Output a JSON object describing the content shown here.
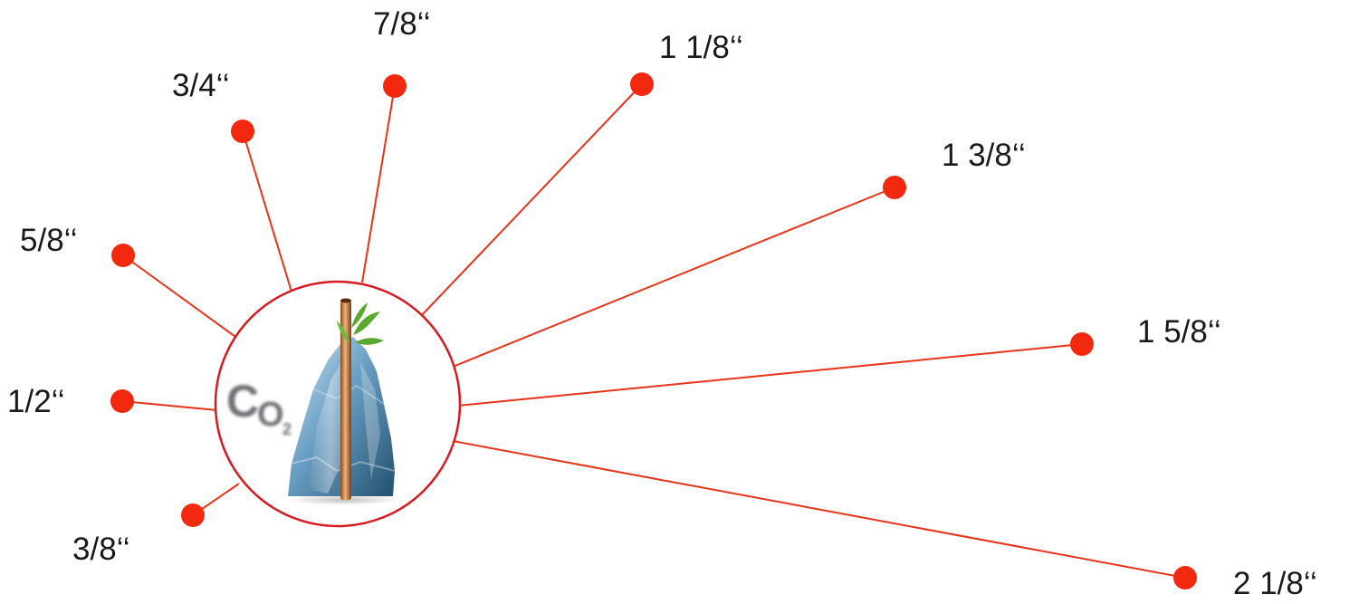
{
  "hub": {
    "molecule_symbol": "C",
    "molecule_o": "O",
    "molecule_subscript": "2",
    "ring_color": "#d71920",
    "ice_color": "#5f93b8",
    "pipe_color": "#c77b3c",
    "leaf_color": "#5aa92e"
  },
  "accent_color": "#f2290f",
  "spokes": [
    {
      "id": "3-8",
      "label": "3/8‘‘"
    },
    {
      "id": "1-2",
      "label": "1/2‘‘"
    },
    {
      "id": "5-8",
      "label": "5/8‘‘"
    },
    {
      "id": "3-4",
      "label": "3/4‘‘"
    },
    {
      "id": "7-8",
      "label": "7/8‘‘"
    },
    {
      "id": "1-1-8",
      "label": "1 1/8‘‘"
    },
    {
      "id": "1-3-8",
      "label": "1 3/8‘‘"
    },
    {
      "id": "1-5-8",
      "label": "1 5/8‘‘"
    },
    {
      "id": "2-1-8",
      "label": "2 1/8‘‘"
    }
  ]
}
